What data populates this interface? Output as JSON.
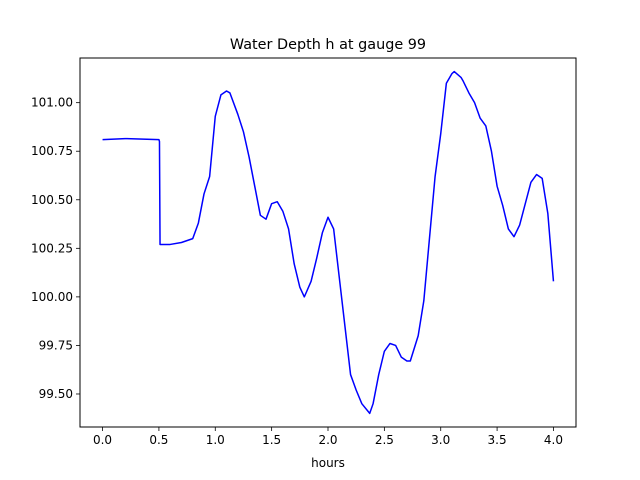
{
  "chart_data": {
    "type": "line",
    "title": "Water Depth h at gauge 99",
    "xlabel": "hours",
    "ylabel": "",
    "xlim": [
      -0.2,
      4.2
    ],
    "ylim": [
      99.33,
      101.23
    ],
    "xticks": [
      0.0,
      0.5,
      1.0,
      1.5,
      2.0,
      2.5,
      3.0,
      3.5,
      4.0
    ],
    "xtick_labels": [
      "0.0",
      "0.5",
      "1.0",
      "1.5",
      "2.0",
      "2.5",
      "3.0",
      "3.5",
      "4.0"
    ],
    "yticks": [
      99.5,
      99.75,
      100.0,
      100.25,
      100.5,
      100.75,
      101.0
    ],
    "ytick_labels": [
      "99.50",
      "99.75",
      "100.00",
      "100.25",
      "100.50",
      "100.75",
      "101.00"
    ],
    "grid": false,
    "legend": "none",
    "series": [
      {
        "color": "#0000ff",
        "x": [
          0.0,
          0.2,
          0.5,
          0.505,
          0.51,
          0.6,
          0.7,
          0.8,
          0.85,
          0.9,
          0.95,
          1.0,
          1.05,
          1.1,
          1.13,
          1.2,
          1.25,
          1.3,
          1.35,
          1.4,
          1.45,
          1.5,
          1.55,
          1.6,
          1.65,
          1.7,
          1.75,
          1.79,
          1.85,
          1.9,
          1.95,
          2.0,
          2.05,
          2.1,
          2.15,
          2.2,
          2.25,
          2.3,
          2.37,
          2.4,
          2.45,
          2.5,
          2.55,
          2.6,
          2.65,
          2.7,
          2.73,
          2.8,
          2.85,
          2.9,
          2.95,
          3.0,
          3.05,
          3.1,
          3.12,
          3.18,
          3.2,
          3.25,
          3.3,
          3.35,
          3.4,
          3.45,
          3.5,
          3.55,
          3.6,
          3.65,
          3.7,
          3.75,
          3.8,
          3.85,
          3.9,
          3.95,
          4.0
        ],
        "y": [
          100.81,
          100.815,
          100.81,
          100.8,
          100.27,
          100.27,
          100.28,
          100.3,
          100.38,
          100.53,
          100.62,
          100.93,
          101.04,
          101.06,
          101.05,
          100.94,
          100.85,
          100.72,
          100.57,
          100.42,
          100.4,
          100.48,
          100.49,
          100.44,
          100.35,
          100.17,
          100.05,
          100.0,
          100.08,
          100.2,
          100.33,
          100.41,
          100.35,
          100.1,
          99.85,
          99.6,
          99.52,
          99.45,
          99.4,
          99.45,
          99.6,
          99.72,
          99.76,
          99.75,
          99.69,
          99.67,
          99.67,
          99.8,
          99.98,
          100.3,
          100.62,
          100.84,
          101.1,
          101.15,
          101.16,
          101.13,
          101.11,
          101.05,
          101.0,
          100.92,
          100.88,
          100.75,
          100.57,
          100.47,
          100.35,
          100.31,
          100.37,
          100.48,
          100.59,
          100.63,
          100.61,
          100.43,
          100.08
        ]
      }
    ]
  }
}
